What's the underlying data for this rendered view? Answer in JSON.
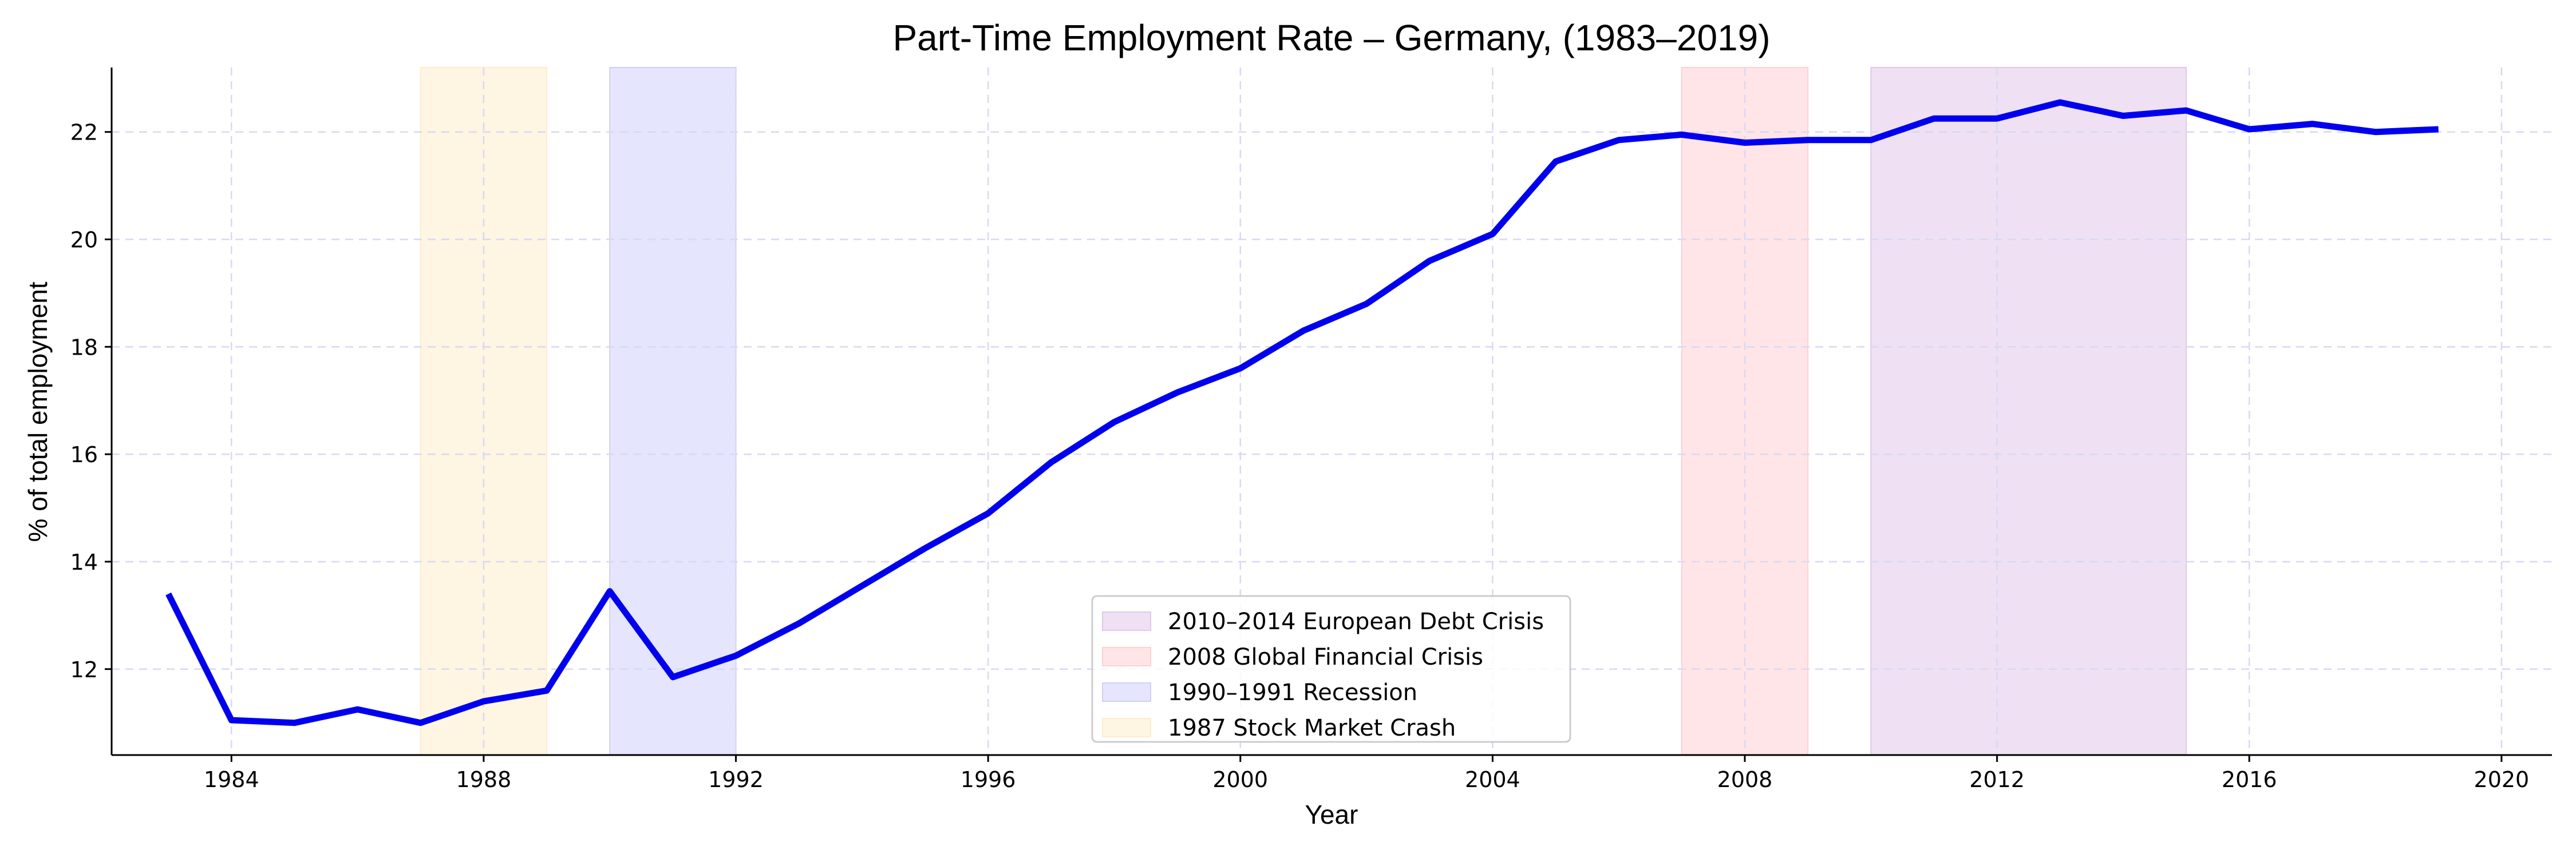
{
  "chart_data": {
    "type": "line",
    "title": "Part-Time Employment Rate – Germany, (1983–2019)",
    "xlabel": "Year",
    "ylabel": "% of total employment",
    "xlim": [
      1982.1,
      2020.8
    ],
    "ylim": [
      10.4,
      23.2
    ],
    "xticks": [
      1984,
      1988,
      1992,
      1996,
      2000,
      2004,
      2008,
      2012,
      2016,
      2020
    ],
    "yticks": [
      12,
      14,
      16,
      18,
      20,
      22
    ],
    "grid": true,
    "legend_position": "lower center",
    "series": [
      {
        "color": "#0000ee",
        "x": [
          1983,
          1984,
          1985,
          1986,
          1987,
          1988,
          1989,
          1990,
          1991,
          1992,
          1993,
          1994,
          1995,
          1996,
          1997,
          1998,
          1999,
          2000,
          2001,
          2002,
          2003,
          2004,
          2005,
          2006,
          2007,
          2008,
          2009,
          2010,
          2011,
          2012,
          2013,
          2014,
          2015,
          2016,
          2017,
          2018,
          2019
        ],
        "values": [
          13.4,
          11.05,
          11.0,
          11.25,
          11.0,
          11.4,
          11.6,
          13.45,
          11.85,
          12.25,
          12.85,
          13.55,
          14.25,
          14.9,
          15.85,
          16.6,
          17.15,
          17.6,
          18.3,
          18.8,
          19.6,
          20.1,
          21.45,
          21.85,
          21.95,
          21.8,
          21.85,
          21.85,
          22.25,
          22.25,
          22.55,
          22.3,
          22.4,
          22.05,
          22.15,
          22.0,
          22.05
        ]
      }
    ],
    "shaded_periods": [
      {
        "label": "2010–2014 European Debt Crisis",
        "start": 2010,
        "end": 2015,
        "color": "#e1c8ea"
      },
      {
        "label": "2008 Global Financial Crisis",
        "start": 2007,
        "end": 2009,
        "color": "#ffd0d4"
      },
      {
        "label": "1990–1991 Recession",
        "start": 1990,
        "end": 1992,
        "color": "#cfcffc"
      },
      {
        "label": "1987 Stock Market Crash",
        "start": 1987,
        "end": 1989,
        "color": "#ffeccc"
      }
    ]
  }
}
